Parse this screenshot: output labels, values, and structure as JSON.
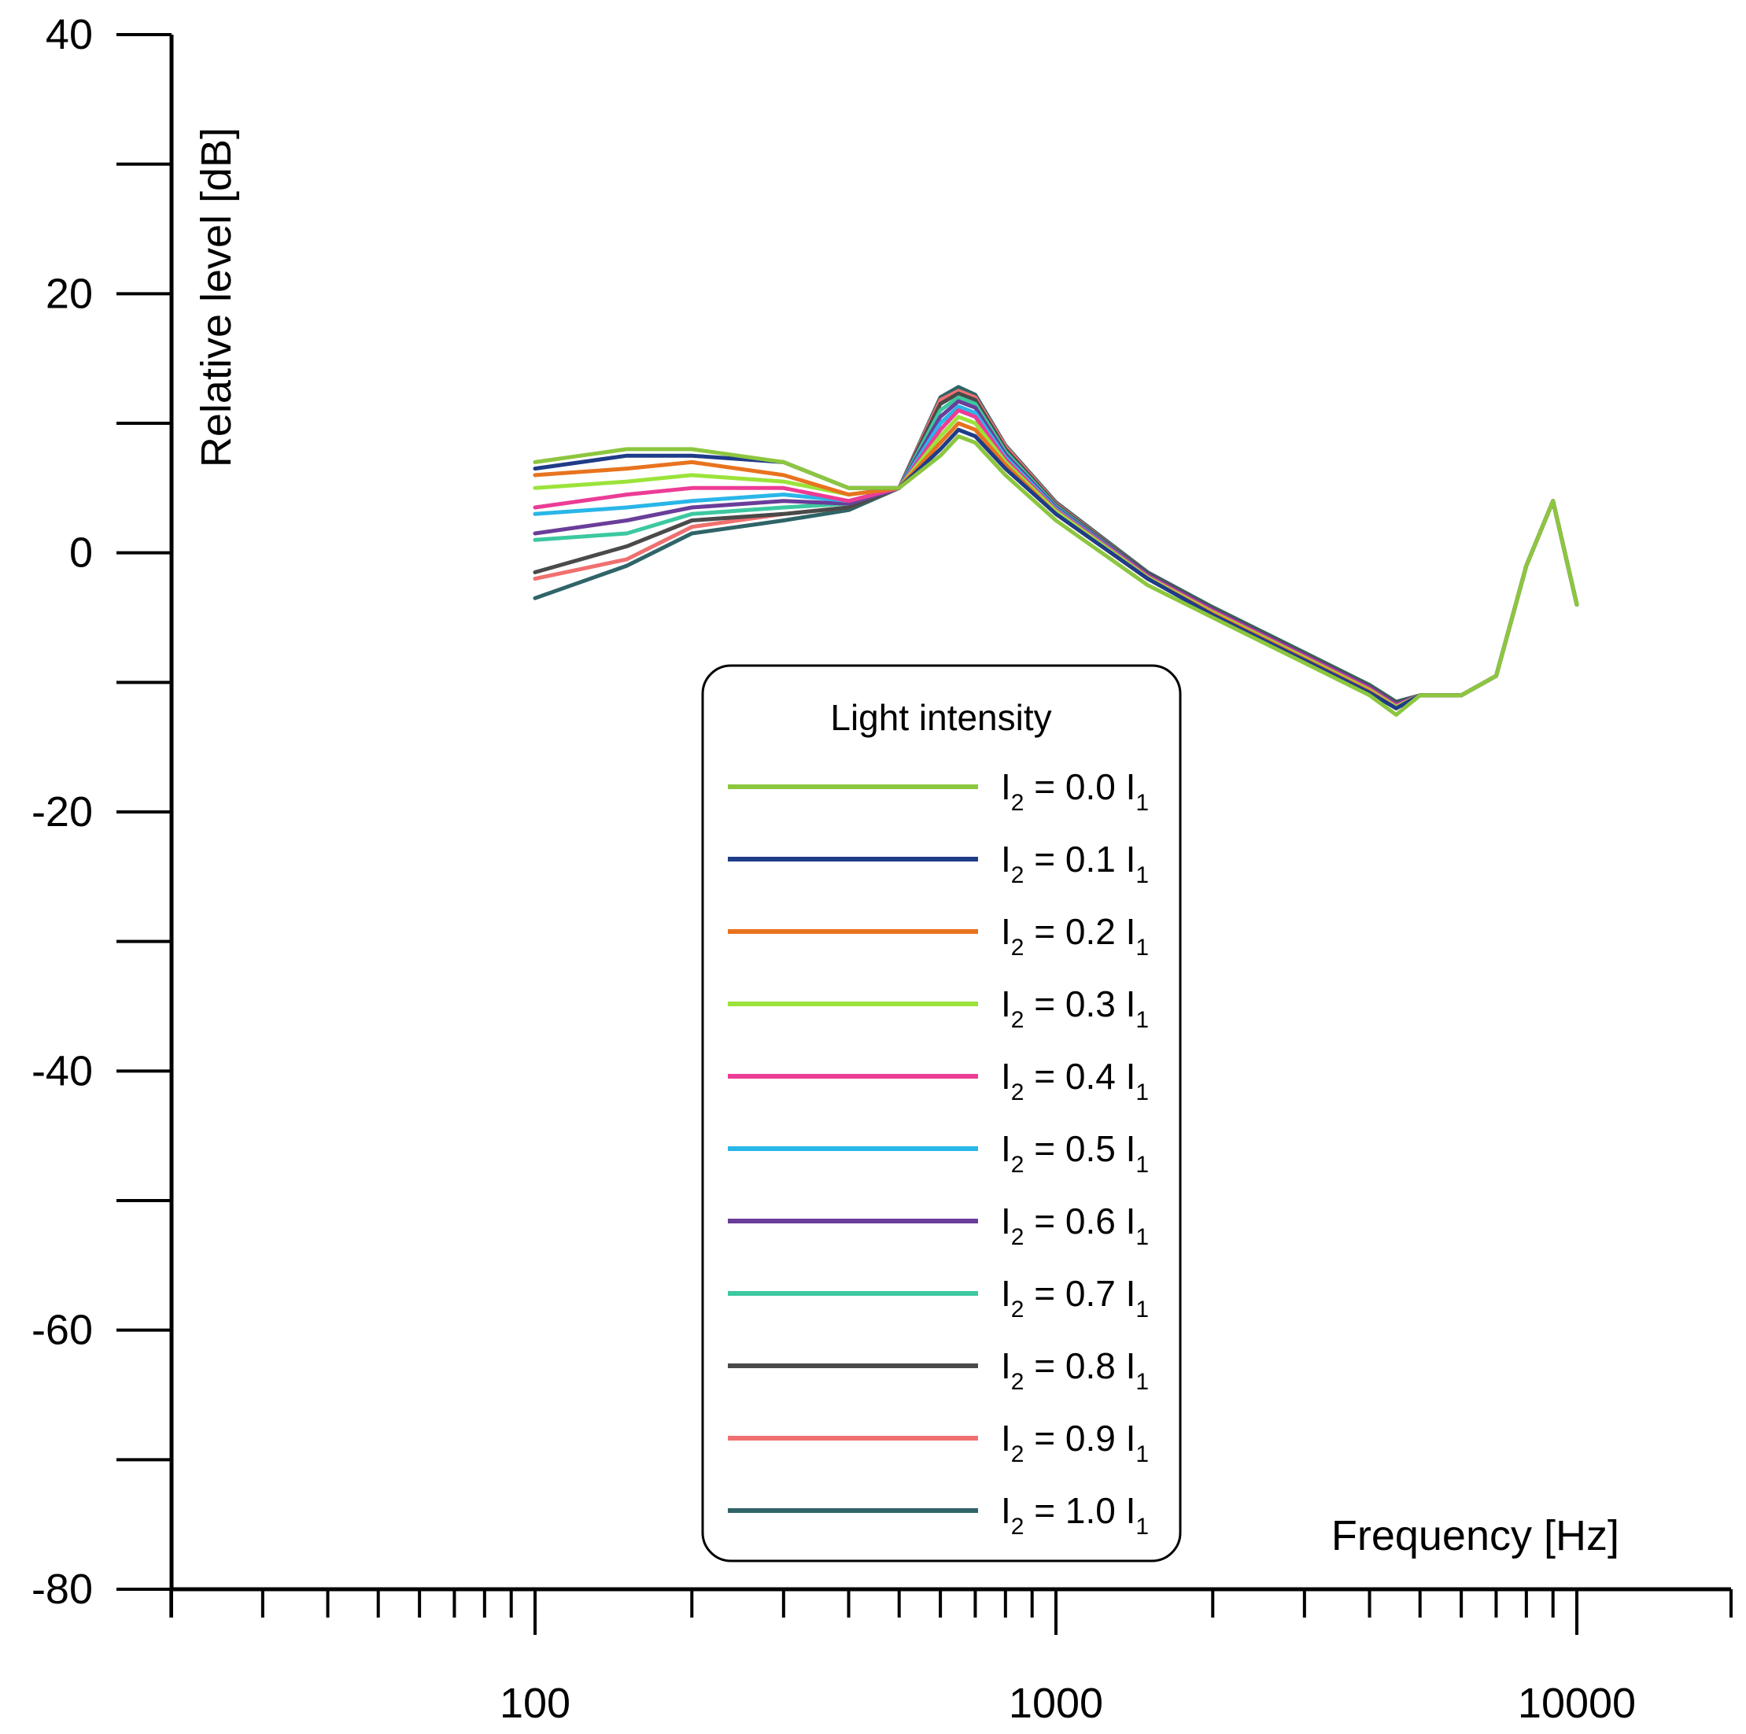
{
  "chart_data": {
    "type": "line",
    "title": "",
    "xlabel": "Frequency [Hz]",
    "ylabel": "Relative level [dB]",
    "xscale": "log",
    "xlim": [
      20,
      20000
    ],
    "ylim": [
      -80,
      40
    ],
    "x_tick_labels": [
      "100",
      "1000",
      "10000"
    ],
    "y_tick_labels": [
      "40",
      "20",
      "0",
      "-20",
      "-40",
      "-60",
      "-80"
    ],
    "y_tick_values": [
      40,
      20,
      0,
      -20,
      -40,
      -60,
      -80
    ],
    "grid": false,
    "legend": {
      "title": "Light intensity",
      "position": "center-bottom"
    },
    "x": [
      100,
      150,
      200,
      300,
      400,
      500,
      600,
      650,
      700,
      800,
      1000,
      1500,
      2000,
      3000,
      4000,
      4500,
      5000,
      6000,
      7000,
      8000,
      9000,
      10000
    ],
    "series": [
      {
        "name": "I2 = 0.0 I1",
        "label_main": "I",
        "label_sub": "2",
        "label_mid": " = 0.0 I",
        "label_sub2": "1",
        "color": "#8dc63f",
        "values": [
          7.0,
          8.0,
          8.0,
          7.0,
          5.0,
          5.0,
          7.5,
          9.0,
          8.5,
          6.0,
          2.5,
          -2.5,
          -5.0,
          -8.5,
          -11.0,
          -12.5,
          -11.0,
          -11.0,
          -9.5,
          -1.0,
          4.0,
          -4.0
        ]
      },
      {
        "name": "I2 = 0.1 I1",
        "label_main": "I",
        "label_sub": "2",
        "label_mid": " = 0.1 I",
        "label_sub2": "1",
        "color": "#1f3c88",
        "values": [
          6.5,
          7.5,
          7.5,
          7.0,
          5.0,
          5.0,
          8.0,
          9.5,
          9.0,
          6.5,
          3.0,
          -2.0,
          -4.8,
          -8.3,
          -10.8,
          -12.0,
          -11.0,
          -11.0,
          -9.5,
          -1.0,
          4.0,
          -4.0
        ]
      },
      {
        "name": "I2 = 0.2 I1",
        "label_main": "I",
        "label_sub": "2",
        "label_mid": " = 0.2 I",
        "label_sub2": "1",
        "color": "#e8731e",
        "values": [
          6.0,
          6.5,
          7.0,
          6.0,
          4.5,
          5.0,
          8.5,
          10.0,
          9.5,
          6.8,
          3.0,
          -2.0,
          -4.7,
          -8.2,
          -10.7,
          -12.0,
          -11.0,
          -11.0,
          -9.5,
          -1.0,
          4.0,
          -4.0
        ]
      },
      {
        "name": "I2 = 0.3 I1",
        "label_main": "I",
        "label_sub": "2",
        "label_mid": " = 0.3 I",
        "label_sub2": "1",
        "color": "#9be33a",
        "values": [
          5.0,
          5.5,
          6.0,
          5.5,
          4.5,
          5.0,
          9.0,
          10.5,
          10.0,
          7.0,
          3.2,
          -1.9,
          -4.6,
          -8.1,
          -10.6,
          -11.9,
          -11.0,
          -11.0,
          -9.5,
          -1.0,
          4.0,
          -4.0
        ]
      },
      {
        "name": "I2 = 0.4 I1",
        "label_main": "I",
        "label_sub": "2",
        "label_mid": " = 0.4 I",
        "label_sub2": "1",
        "color": "#ec3c96",
        "values": [
          3.5,
          4.5,
          5.0,
          5.0,
          4.0,
          5.0,
          9.5,
          11.0,
          10.5,
          7.2,
          3.3,
          -1.8,
          -4.5,
          -8.0,
          -10.5,
          -11.8,
          -11.0,
          -11.0,
          -9.5,
          -1.0,
          4.0,
          -4.0
        ]
      },
      {
        "name": "I2 = 0.5 I1",
        "label_main": "I",
        "label_sub": "2",
        "label_mid": " = 0.5 I",
        "label_sub2": "1",
        "color": "#29b6e8",
        "values": [
          3.0,
          3.5,
          4.0,
          4.5,
          4.0,
          5.0,
          10.0,
          11.3,
          10.8,
          7.4,
          3.4,
          -1.8,
          -4.5,
          -8.0,
          -10.5,
          -11.8,
          -11.0,
          -11.0,
          -9.5,
          -1.0,
          4.0,
          -4.0
        ]
      },
      {
        "name": "I2 = 0.6 I1",
        "label_main": "I",
        "label_sub": "2",
        "label_mid": " = 0.6 I",
        "label_sub2": "1",
        "color": "#6a3d9a",
        "values": [
          1.5,
          2.5,
          3.5,
          4.0,
          3.8,
          5.0,
          10.5,
          11.7,
          11.2,
          7.6,
          3.5,
          -1.7,
          -4.4,
          -7.9,
          -10.4,
          -11.7,
          -11.0,
          -11.0,
          -9.5,
          -1.0,
          4.0,
          -4.0
        ]
      },
      {
        "name": "I2 = 0.7 I1",
        "label_main": "I",
        "label_sub": "2",
        "label_mid": " = 0.7 I",
        "label_sub2": "1",
        "color": "#3cc8a0",
        "values": [
          1.0,
          1.5,
          3.0,
          3.5,
          3.8,
          5.0,
          11.0,
          12.0,
          11.5,
          7.8,
          3.6,
          -1.7,
          -4.4,
          -7.9,
          -10.4,
          -11.7,
          -11.0,
          -11.0,
          -9.5,
          -1.0,
          4.0,
          -4.0
        ]
      },
      {
        "name": "I2 = 0.8 I1",
        "label_main": "I",
        "label_sub": "2",
        "label_mid": " = 0.8 I",
        "label_sub2": "1",
        "color": "#4a4a4a",
        "values": [
          -1.5,
          0.5,
          2.5,
          3.0,
          3.5,
          5.0,
          11.5,
          12.3,
          11.8,
          8.0,
          3.7,
          -1.6,
          -4.3,
          -7.8,
          -10.3,
          -11.6,
          -11.0,
          -11.0,
          -9.5,
          -1.0,
          4.0,
          -4.0
        ]
      },
      {
        "name": "I2 = 0.9 I1",
        "label_main": "I",
        "label_sub": "2",
        "label_mid": " = 0.9 I",
        "label_sub2": "1",
        "color": "#f07070",
        "values": [
          -2.0,
          -0.5,
          2.0,
          3.0,
          3.5,
          5.0,
          11.8,
          12.5,
          12.0,
          8.2,
          3.8,
          -1.6,
          -4.3,
          -7.8,
          -10.3,
          -11.6,
          -11.0,
          -11.0,
          -9.5,
          -1.0,
          4.0,
          -4.0
        ]
      },
      {
        "name": "I2 = 1.0 I1",
        "label_main": "I",
        "label_sub": "2",
        "label_mid": " = 1.0 I",
        "label_sub2": "1",
        "color": "#2f6468",
        "values": [
          -3.5,
          -1.0,
          1.5,
          2.5,
          3.3,
          5.0,
          12.0,
          12.8,
          12.2,
          8.3,
          3.9,
          -1.5,
          -4.2,
          -7.7,
          -10.2,
          -11.5,
          -11.0,
          -11.0,
          -9.5,
          -1.0,
          4.0,
          -4.0
        ]
      }
    ]
  }
}
